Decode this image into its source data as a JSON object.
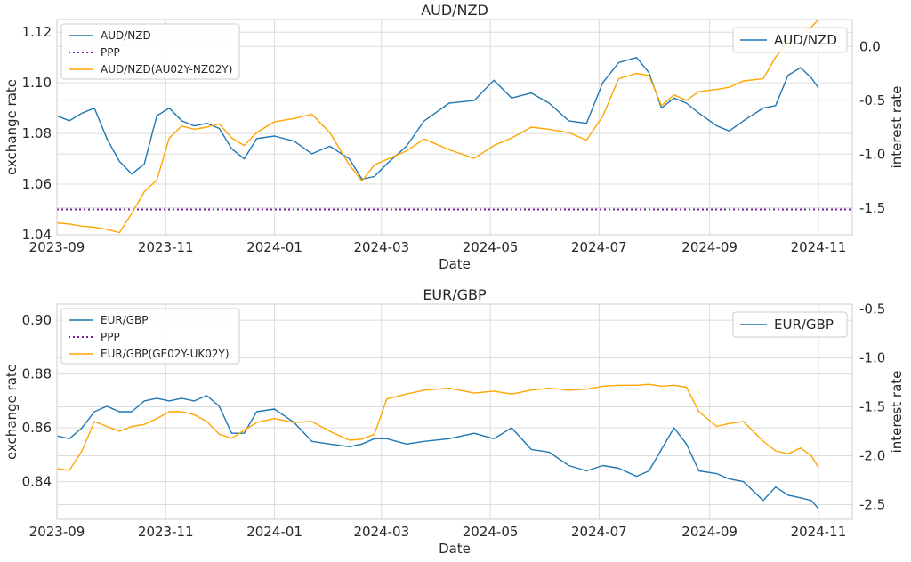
{
  "chart_data": [
    {
      "type": "line",
      "title": "AUD/NZD",
      "xlabel": "Date",
      "ylabel": "exchange rate",
      "y2label": "interest rate",
      "xlim": [
        "2023-09-01",
        "2024-11-20"
      ],
      "ylim": [
        1.04,
        1.125
      ],
      "y2lim": [
        -1.75,
        0.25
      ],
      "xticks": [
        "2023-09",
        "2023-11",
        "2024-01",
        "2024-03",
        "2024-05",
        "2024-07",
        "2024-09",
        "2024-11"
      ],
      "yticks": [
        "1.04",
        "1.06",
        "1.08",
        "1.10",
        "1.12"
      ],
      "y2ticks": [
        "0.0",
        "-0.5",
        "-1.0",
        "-1.5"
      ],
      "grid": true,
      "legend_left": [
        "AUD/NZD",
        "PPP",
        "AUD/NZD(AU02Y-NZ02Y)"
      ],
      "legend_right": [
        "AUD/NZD"
      ],
      "series": [
        {
          "name": "AUD/NZD",
          "axis": "left",
          "color": "#1f77b4",
          "style": "solid",
          "points": [
            [
              "2023-09-01",
              1.087
            ],
            [
              "2023-09-08",
              1.085
            ],
            [
              "2023-09-15",
              1.088
            ],
            [
              "2023-09-22",
              1.09
            ],
            [
              "2023-09-29",
              1.078
            ],
            [
              "2023-10-06",
              1.069
            ],
            [
              "2023-10-13",
              1.064
            ],
            [
              "2023-10-20",
              1.068
            ],
            [
              "2023-10-27",
              1.087
            ],
            [
              "2023-11-03",
              1.09
            ],
            [
              "2023-11-10",
              1.085
            ],
            [
              "2023-11-17",
              1.083
            ],
            [
              "2023-11-24",
              1.084
            ],
            [
              "2023-12-01",
              1.082
            ],
            [
              "2023-12-08",
              1.074
            ],
            [
              "2023-12-15",
              1.07
            ],
            [
              "2023-12-22",
              1.078
            ],
            [
              "2024-01-01",
              1.079
            ],
            [
              "2024-01-12",
              1.077
            ],
            [
              "2024-01-22",
              1.072
            ],
            [
              "2024-02-01",
              1.075
            ],
            [
              "2024-02-12",
              1.07
            ],
            [
              "2024-02-19",
              1.062
            ],
            [
              "2024-02-26",
              1.063
            ],
            [
              "2024-03-04",
              1.068
            ],
            [
              "2024-03-15",
              1.075
            ],
            [
              "2024-03-25",
              1.085
            ],
            [
              "2024-04-08",
              1.092
            ],
            [
              "2024-04-22",
              1.093
            ],
            [
              "2024-05-03",
              1.101
            ],
            [
              "2024-05-13",
              1.094
            ],
            [
              "2024-05-24",
              1.096
            ],
            [
              "2024-06-03",
              1.092
            ],
            [
              "2024-06-14",
              1.085
            ],
            [
              "2024-06-24",
              1.084
            ],
            [
              "2024-07-03",
              1.1
            ],
            [
              "2024-07-12",
              1.108
            ],
            [
              "2024-07-22",
              1.11
            ],
            [
              "2024-07-29",
              1.104
            ],
            [
              "2024-08-05",
              1.09
            ],
            [
              "2024-08-12",
              1.094
            ],
            [
              "2024-08-19",
              1.092
            ],
            [
              "2024-08-26",
              1.088
            ],
            [
              "2024-09-05",
              1.083
            ],
            [
              "2024-09-12",
              1.081
            ],
            [
              "2024-09-20",
              1.085
            ],
            [
              "2024-10-01",
              1.09
            ],
            [
              "2024-10-08",
              1.091
            ],
            [
              "2024-10-15",
              1.103
            ],
            [
              "2024-10-22",
              1.106
            ],
            [
              "2024-10-28",
              1.102
            ],
            [
              "2024-11-01",
              1.098
            ]
          ]
        },
        {
          "name": "PPP",
          "axis": "left",
          "color": "#7b1fa2",
          "style": "dotted",
          "points": [
            [
              "2023-09-01",
              1.05
            ],
            [
              "2024-11-20",
              1.05
            ]
          ]
        },
        {
          "name": "AUD/NZD(AU02Y-NZ02Y)",
          "axis": "right",
          "color": "#ffa500",
          "style": "solid",
          "points": [
            [
              "2023-09-01",
              -1.64
            ],
            [
              "2023-09-08",
              -1.65
            ],
            [
              "2023-09-15",
              -1.67
            ],
            [
              "2023-09-22",
              -1.68
            ],
            [
              "2023-09-29",
              -1.7
            ],
            [
              "2023-10-06",
              -1.73
            ],
            [
              "2023-10-13",
              -1.55
            ],
            [
              "2023-10-20",
              -1.35
            ],
            [
              "2023-10-27",
              -1.24
            ],
            [
              "2023-11-03",
              -0.85
            ],
            [
              "2023-11-10",
              -0.74
            ],
            [
              "2023-11-17",
              -0.77
            ],
            [
              "2023-11-24",
              -0.75
            ],
            [
              "2023-12-01",
              -0.72
            ],
            [
              "2023-12-08",
              -0.85
            ],
            [
              "2023-12-15",
              -0.92
            ],
            [
              "2023-12-22",
              -0.8
            ],
            [
              "2024-01-01",
              -0.7
            ],
            [
              "2024-01-12",
              -0.67
            ],
            [
              "2024-01-22",
              -0.63
            ],
            [
              "2024-02-01",
              -0.8
            ],
            [
              "2024-02-12",
              -1.1
            ],
            [
              "2024-02-19",
              -1.25
            ],
            [
              "2024-02-26",
              -1.1
            ],
            [
              "2024-03-04",
              -1.05
            ],
            [
              "2024-03-15",
              -0.97
            ],
            [
              "2024-03-25",
              -0.86
            ],
            [
              "2024-04-08",
              -0.96
            ],
            [
              "2024-04-22",
              -1.04
            ],
            [
              "2024-05-03",
              -0.92
            ],
            [
              "2024-05-13",
              -0.85
            ],
            [
              "2024-05-24",
              -0.75
            ],
            [
              "2024-06-03",
              -0.77
            ],
            [
              "2024-06-14",
              -0.8
            ],
            [
              "2024-06-24",
              -0.87
            ],
            [
              "2024-07-03",
              -0.65
            ],
            [
              "2024-07-12",
              -0.3
            ],
            [
              "2024-07-22",
              -0.25
            ],
            [
              "2024-07-29",
              -0.27
            ],
            [
              "2024-08-05",
              -0.55
            ],
            [
              "2024-08-12",
              -0.45
            ],
            [
              "2024-08-19",
              -0.5
            ],
            [
              "2024-08-26",
              -0.42
            ],
            [
              "2024-09-05",
              -0.4
            ],
            [
              "2024-09-12",
              -0.38
            ],
            [
              "2024-09-20",
              -0.32
            ],
            [
              "2024-10-01",
              -0.3
            ],
            [
              "2024-10-08",
              -0.1
            ],
            [
              "2024-10-15",
              0.05
            ],
            [
              "2024-10-22",
              0.12
            ],
            [
              "2024-10-28",
              0.18
            ],
            [
              "2024-11-01",
              0.25
            ]
          ]
        }
      ]
    },
    {
      "type": "line",
      "title": "EUR/GBP",
      "xlabel": "Date",
      "ylabel": "exchange rate",
      "y2label": "interest rate",
      "xlim": [
        "2023-09-01",
        "2024-11-20"
      ],
      "ylim": [
        0.826,
        0.906
      ],
      "y2lim": [
        -2.65,
        -0.45
      ],
      "xticks": [
        "2023-09",
        "2023-11",
        "2024-01",
        "2024-03",
        "2024-05",
        "2024-07",
        "2024-09",
        "2024-11"
      ],
      "yticks": [
        "0.84",
        "0.86",
        "0.88",
        "0.90"
      ],
      "y2ticks": [
        "-0.5",
        "-1.0",
        "-1.5",
        "-2.0",
        "-2.5"
      ],
      "grid": true,
      "legend_left": [
        "EUR/GBP",
        "PPP",
        "EUR/GBP(GE02Y-UK02Y)"
      ],
      "legend_right": [
        "EUR/GBP"
      ],
      "series": [
        {
          "name": "EUR/GBP",
          "axis": "left",
          "color": "#1f77b4",
          "style": "solid",
          "points": [
            [
              "2023-09-01",
              0.857
            ],
            [
              "2023-09-08",
              0.856
            ],
            [
              "2023-09-15",
              0.86
            ],
            [
              "2023-09-22",
              0.866
            ],
            [
              "2023-09-29",
              0.868
            ],
            [
              "2023-10-06",
              0.866
            ],
            [
              "2023-10-13",
              0.866
            ],
            [
              "2023-10-20",
              0.87
            ],
            [
              "2023-10-27",
              0.871
            ],
            [
              "2023-11-03",
              0.87
            ],
            [
              "2023-11-10",
              0.871
            ],
            [
              "2023-11-17",
              0.87
            ],
            [
              "2023-11-24",
              0.872
            ],
            [
              "2023-12-01",
              0.868
            ],
            [
              "2023-12-08",
              0.858
            ],
            [
              "2023-12-15",
              0.858
            ],
            [
              "2023-12-22",
              0.866
            ],
            [
              "2024-01-01",
              0.867
            ],
            [
              "2024-01-12",
              0.862
            ],
            [
              "2024-01-22",
              0.855
            ],
            [
              "2024-02-01",
              0.854
            ],
            [
              "2024-02-12",
              0.853
            ],
            [
              "2024-02-19",
              0.854
            ],
            [
              "2024-02-26",
              0.856
            ],
            [
              "2024-03-04",
              0.856
            ],
            [
              "2024-03-15",
              0.854
            ],
            [
              "2024-03-25",
              0.855
            ],
            [
              "2024-04-08",
              0.856
            ],
            [
              "2024-04-22",
              0.858
            ],
            [
              "2024-05-03",
              0.856
            ],
            [
              "2024-05-13",
              0.86
            ],
            [
              "2024-05-24",
              0.852
            ],
            [
              "2024-06-03",
              0.851
            ],
            [
              "2024-06-14",
              0.846
            ],
            [
              "2024-06-24",
              0.844
            ],
            [
              "2024-07-03",
              0.846
            ],
            [
              "2024-07-12",
              0.845
            ],
            [
              "2024-07-22",
              0.842
            ],
            [
              "2024-07-29",
              0.844
            ],
            [
              "2024-08-05",
              0.852
            ],
            [
              "2024-08-12",
              0.86
            ],
            [
              "2024-08-19",
              0.854
            ],
            [
              "2024-08-26",
              0.844
            ],
            [
              "2024-09-05",
              0.843
            ],
            [
              "2024-09-12",
              0.841
            ],
            [
              "2024-09-20",
              0.84
            ],
            [
              "2024-10-01",
              0.833
            ],
            [
              "2024-10-08",
              0.838
            ],
            [
              "2024-10-15",
              0.835
            ],
            [
              "2024-10-22",
              0.834
            ],
            [
              "2024-10-28",
              0.833
            ],
            [
              "2024-11-01",
              0.83
            ]
          ]
        },
        {
          "name": "PPP",
          "axis": "left",
          "color": "#7b1fa2",
          "style": "dotted",
          "points": []
        },
        {
          "name": "EUR/GBP(GE02Y-UK02Y)",
          "axis": "right",
          "color": "#ffa500",
          "style": "solid",
          "points": [
            [
              "2023-09-01",
              -2.13
            ],
            [
              "2023-09-08",
              -2.15
            ],
            [
              "2023-09-15",
              -1.95
            ],
            [
              "2023-09-22",
              -1.65
            ],
            [
              "2023-09-29",
              -1.7
            ],
            [
              "2023-10-06",
              -1.75
            ],
            [
              "2023-10-13",
              -1.7
            ],
            [
              "2023-10-20",
              -1.68
            ],
            [
              "2023-10-27",
              -1.62
            ],
            [
              "2023-11-03",
              -1.55
            ],
            [
              "2023-11-10",
              -1.55
            ],
            [
              "2023-11-17",
              -1.58
            ],
            [
              "2023-11-24",
              -1.65
            ],
            [
              "2023-12-01",
              -1.78
            ],
            [
              "2023-12-08",
              -1.82
            ],
            [
              "2023-12-15",
              -1.74
            ],
            [
              "2023-12-22",
              -1.66
            ],
            [
              "2024-01-01",
              -1.62
            ],
            [
              "2024-01-12",
              -1.66
            ],
            [
              "2024-01-22",
              -1.65
            ],
            [
              "2024-02-01",
              -1.75
            ],
            [
              "2024-02-12",
              -1.84
            ],
            [
              "2024-02-19",
              -1.83
            ],
            [
              "2024-02-26",
              -1.78
            ],
            [
              "2024-03-04",
              -1.42
            ],
            [
              "2024-03-15",
              -1.37
            ],
            [
              "2024-03-25",
              -1.33
            ],
            [
              "2024-04-08",
              -1.31
            ],
            [
              "2024-04-22",
              -1.36
            ],
            [
              "2024-05-03",
              -1.34
            ],
            [
              "2024-05-13",
              -1.37
            ],
            [
              "2024-05-24",
              -1.33
            ],
            [
              "2024-06-03",
              -1.31
            ],
            [
              "2024-06-14",
              -1.33
            ],
            [
              "2024-06-24",
              -1.32
            ],
            [
              "2024-07-03",
              -1.29
            ],
            [
              "2024-07-12",
              -1.28
            ],
            [
              "2024-07-22",
              -1.28
            ],
            [
              "2024-07-29",
              -1.27
            ],
            [
              "2024-08-05",
              -1.29
            ],
            [
              "2024-08-12",
              -1.28
            ],
            [
              "2024-08-19",
              -1.3
            ],
            [
              "2024-08-26",
              -1.55
            ],
            [
              "2024-09-05",
              -1.7
            ],
            [
              "2024-09-12",
              -1.67
            ],
            [
              "2024-09-20",
              -1.65
            ],
            [
              "2024-10-01",
              -1.85
            ],
            [
              "2024-10-08",
              -1.95
            ],
            [
              "2024-10-15",
              -1.98
            ],
            [
              "2024-10-22",
              -1.92
            ],
            [
              "2024-10-28",
              -2.0
            ],
            [
              "2024-11-01",
              -2.12
            ]
          ]
        }
      ]
    }
  ]
}
